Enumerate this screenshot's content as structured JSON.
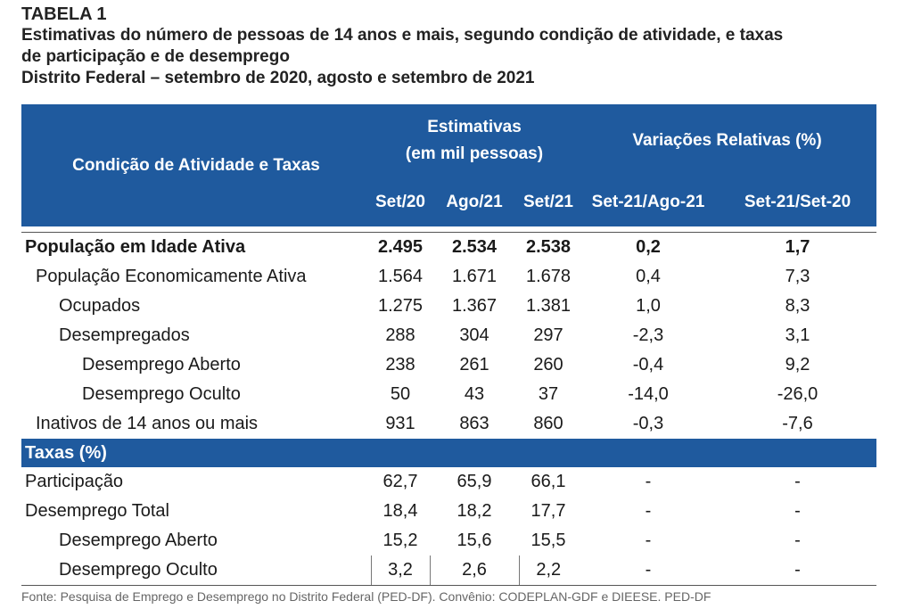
{
  "table": {
    "label": "TABELA 1",
    "title_line1": "Estimativas do número de pessoas de 14 anos e mais, segundo condição de atividade, e taxas",
    "title_line2": "de participação e de desemprego",
    "title_line3": "Distrito Federal – setembro de 2020, agosto e setembro de 2021"
  },
  "header": {
    "condition": "Condição de Atividade e Taxas",
    "estimates_line1": "Estimativas",
    "estimates_line2": "(em mil pessoas)",
    "variations": "Variações Relativas (%)",
    "cols": [
      "Set/20",
      "Ago/21",
      "Set/21",
      "Set-21/Ago-21",
      "Set-21/Set-20"
    ]
  },
  "rows": [
    {
      "label": "População em Idade Ativa",
      "values": [
        "2.495",
        "2.534",
        "2.538",
        "0,2",
        "1,7"
      ]
    },
    {
      "label": "População Economicamente Ativa",
      "values": [
        "1.564",
        "1.671",
        "1.678",
        "0,4",
        "7,3"
      ]
    },
    {
      "label": "Ocupados",
      "values": [
        "1.275",
        "1.367",
        "1.381",
        "1,0",
        "8,3"
      ]
    },
    {
      "label": "Desempregados",
      "values": [
        "288",
        "304",
        "297",
        "-2,3",
        "3,1"
      ]
    },
    {
      "label": "Desemprego Aberto",
      "values": [
        "238",
        "261",
        "260",
        "-0,4",
        "9,2"
      ]
    },
    {
      "label": "Desemprego Oculto",
      "values": [
        "50",
        "43",
        "37",
        "-14,0",
        "-26,0"
      ]
    },
    {
      "label": "Inativos de 14 anos ou mais",
      "values": [
        "931",
        "863",
        "860",
        "-0,3",
        "-7,6"
      ]
    }
  ],
  "section_rates": "Taxas (%)",
  "rate_rows": [
    {
      "label": "Participação",
      "values": [
        "62,7",
        "65,9",
        "66,1",
        "-",
        "-"
      ]
    },
    {
      "label": "Desemprego Total",
      "values": [
        "18,4",
        "18,2",
        "17,7",
        "-",
        "-"
      ]
    },
    {
      "label": "Desemprego Aberto",
      "values": [
        "15,2",
        "15,6",
        "15,5",
        "-",
        "-"
      ]
    },
    {
      "label": "Desemprego Oculto",
      "values": [
        "3,2",
        "2,6",
        "2,2",
        "-",
        "-"
      ]
    }
  ],
  "footer": "Fonte: Pesquisa de Emprego e Desemprego no Distrito Federal (PED-DF). Convênio: CODEPLAN-GDF e DIEESE. PED-DF",
  "colors": {
    "header_bg": "#1f5a9e",
    "header_text": "#ffffff"
  }
}
